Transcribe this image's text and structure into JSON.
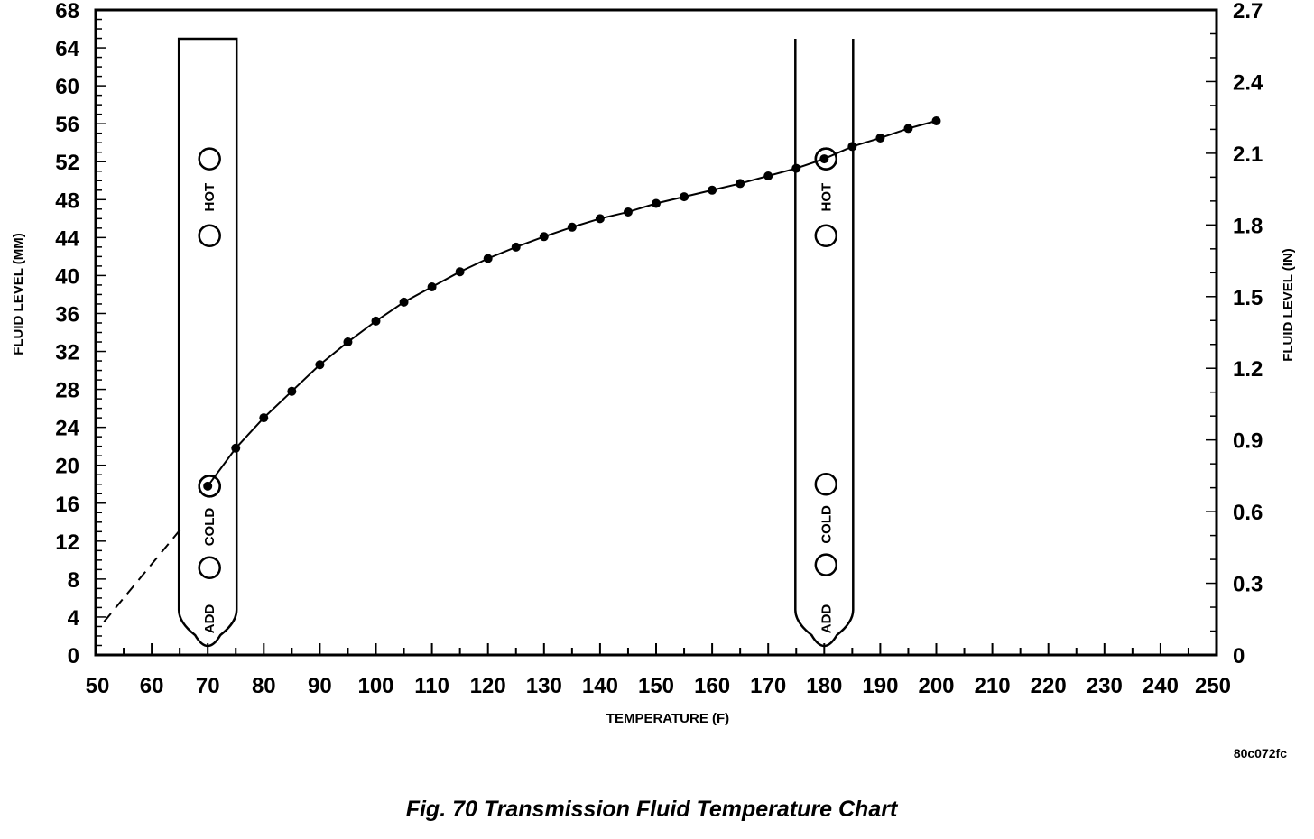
{
  "caption": "Fig. 70 Transmission Fluid Temperature Chart",
  "reference_code": "80c072fc",
  "chart_data": {
    "type": "line",
    "title": "",
    "xlabel": "TEMPERATURE (F)",
    "ylabel": "FLUID LEVEL (MM)",
    "y2label": "FLUID LEVEL (IN)",
    "xlim": [
      50,
      250
    ],
    "ylim": [
      0,
      68
    ],
    "y2lim": [
      0,
      2.7
    ],
    "x_ticks": [
      50,
      60,
      70,
      80,
      90,
      100,
      110,
      120,
      130,
      140,
      150,
      160,
      170,
      180,
      190,
      200,
      210,
      220,
      230,
      240,
      250
    ],
    "y_ticks": [
      0,
      4,
      8,
      12,
      16,
      20,
      24,
      28,
      32,
      36,
      40,
      44,
      48,
      52,
      56,
      60,
      64,
      68
    ],
    "y2_ticks": [
      "0",
      "0.3",
      "0.6",
      "0.9",
      "1.2",
      "1.5",
      "1.8",
      "2.1",
      "2.4",
      "2.7"
    ],
    "grid": false,
    "series": [
      {
        "style": "solid-with-markers",
        "x": [
          70,
          75,
          80,
          85,
          90,
          95,
          100,
          105,
          110,
          115,
          120,
          125,
          130,
          135,
          140,
          145,
          150,
          155,
          160,
          165,
          170,
          175,
          180,
          185,
          190,
          195,
          200
        ],
        "y": [
          17.8,
          21.8,
          25,
          27.8,
          30.6,
          33,
          35.2,
          37.2,
          38.8,
          40.4,
          41.8,
          43,
          44.1,
          45.1,
          46,
          46.7,
          47.6,
          48.3,
          49,
          49.7,
          50.5,
          51.3,
          52.3,
          53.6,
          54.5,
          55.5,
          56.3
        ]
      },
      {
        "style": "dashed",
        "x": [
          51.5,
          65.5
        ],
        "y": [
          3.5,
          13.5
        ]
      }
    ],
    "dipsticks": [
      {
        "center_x": 70,
        "labels": {
          "hot": "HOT",
          "cold": "COLD",
          "add": "ADD"
        },
        "hot_marks_mm": [
          52.3,
          44.2
        ],
        "cold_marks_mm": [
          17.8,
          9.2
        ],
        "highlighted_mark_mm": 17.8
      },
      {
        "center_x": 180,
        "labels": {
          "hot": "HOT",
          "cold": "COLD",
          "add": "ADD"
        },
        "hot_marks_mm": [
          52.3,
          44.2
        ],
        "cold_marks_mm": [
          18,
          9.5
        ],
        "highlighted_mark_mm": 52.3
      }
    ]
  }
}
